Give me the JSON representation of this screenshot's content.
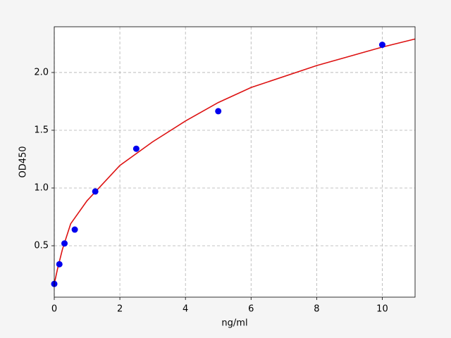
{
  "chart_data": {
    "type": "scatter",
    "xlabel": "ng/ml",
    "ylabel": "OD450",
    "xlim": [
      0,
      11
    ],
    "ylim": [
      0.055,
      2.396
    ],
    "xticks": [
      0,
      2,
      4,
      6,
      8,
      10
    ],
    "yticks": [
      0.5,
      {
        "value": 1,
        "label": "1.0"
      },
      1.5,
      {
        "value": 2,
        "label": "2.0"
      }
    ],
    "grid": true,
    "series": [
      {
        "mode": "line",
        "color": "#dd1111",
        "x": [
          0,
          0.1,
          0.25,
          0.5,
          1,
          2,
          3,
          4,
          5,
          6,
          8,
          10,
          11
        ],
        "values": [
          0.17,
          0.3,
          0.47,
          0.69,
          0.89,
          1.195,
          1.4,
          1.58,
          1.74,
          1.87,
          2.06,
          2.22,
          2.29
        ]
      },
      {
        "mode": "markers",
        "color": "#0000ee",
        "x": [
          0,
          0.156,
          0.312,
          0.625,
          1.25,
          2.5,
          5,
          10
        ],
        "values": [
          0.17,
          0.34,
          0.52,
          0.64,
          0.97,
          1.34,
          1.665,
          2.24
        ]
      }
    ]
  }
}
